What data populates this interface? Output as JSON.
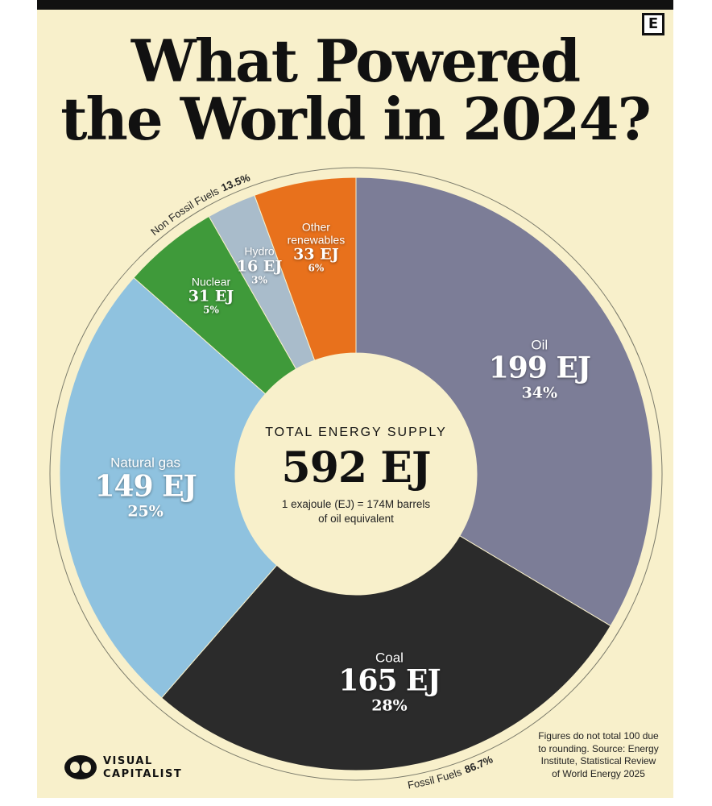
{
  "brand_badge": "E",
  "chart_data": {
    "type": "donut",
    "title": [
      "What Powered",
      "the World in 2024?"
    ],
    "categories": [
      "Oil",
      "Coal",
      "Natural gas",
      "Nuclear",
      "Hydro",
      "Other renewables"
    ],
    "values": [
      199,
      165,
      149,
      31,
      16,
      33
    ],
    "value_labels": [
      "199 EJ",
      "165 EJ",
      "149 EJ",
      "31 EJ",
      "16 EJ",
      "33 EJ"
    ],
    "share_labels": [
      "34%",
      "28%",
      "25%",
      "5%",
      "3%",
      "6%"
    ],
    "colors": [
      "#7c7d97",
      "#2b2b2b",
      "#8fc2df",
      "#3f9a3a",
      "#a9bccb",
      "#e8711c"
    ],
    "groups": [
      {
        "name": "Non Fossil Fuels",
        "share_label": "13.5%"
      },
      {
        "name": "Fossil Fuels",
        "share_label": "86.7%"
      }
    ],
    "center_heading": "TOTAL ENERGY SUPPLY",
    "total_label": "592 EJ",
    "center_note": "1 exajoule (EJ) = 174M barrels of oil equivalent",
    "footnote": "Figures do not total 100 due to rounding. Source: Energy Institute, Statistical Review of World Energy 2025"
  },
  "brand": "VISUAL CAPITALIST"
}
